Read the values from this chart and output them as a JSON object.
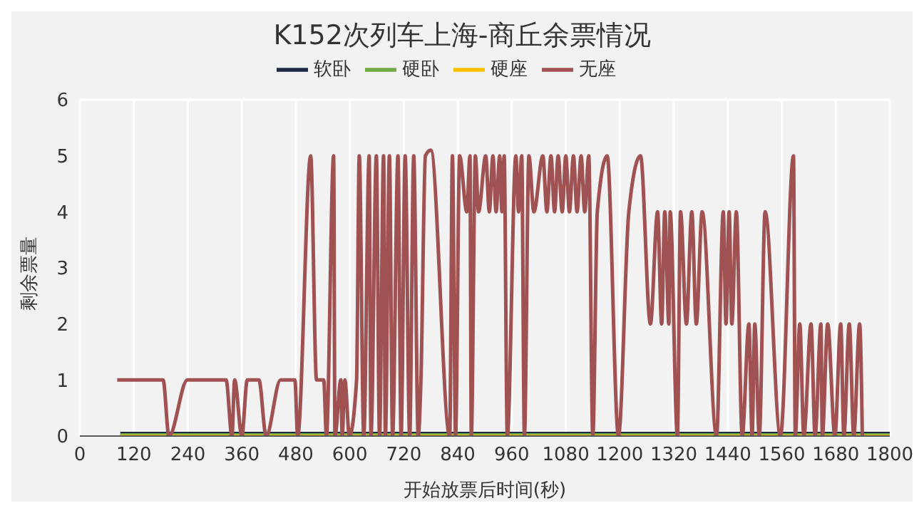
{
  "chart_data": {
    "type": "line",
    "title": "K152次列车上海-商丘余票情况",
    "xlabel": "开始放票后时间(秒)",
    "ylabel": "剩余票量",
    "xlim": [
      0,
      1800
    ],
    "xticks": [
      0,
      120,
      240,
      360,
      480,
      600,
      720,
      840,
      960,
      1080,
      1200,
      1320,
      1440,
      1560,
      1680,
      1800
    ],
    "ylim": [
      0,
      6
    ],
    "yticks": [
      0,
      1,
      2,
      3,
      4,
      5,
      6
    ],
    "grid": true,
    "legend": "top",
    "marker": "none",
    "line_style": "solid",
    "series": [
      {
        "name": "软卧",
        "color": "#1f2a44",
        "x": [
          90,
          1800
        ],
        "values": [
          0,
          0
        ]
      },
      {
        "name": "硬卧",
        "color": "#70ad47",
        "x": [
          90,
          1800
        ],
        "values": [
          0,
          0
        ]
      },
      {
        "name": "硬座",
        "color": "#ffc000",
        "x": [
          90,
          1800
        ],
        "values": [
          0,
          0
        ]
      },
      {
        "name": "无座",
        "color": "#a05252",
        "x": [
          83,
          185,
          198,
          239,
          261,
          325,
          338,
          344,
          360,
          372,
          398,
          414,
          446,
          478,
          484,
          513,
          526,
          542,
          548,
          564,
          567,
          580,
          583,
          589,
          599,
          615,
          621,
          631,
          643,
          647,
          659,
          666,
          675,
          679,
          688,
          695,
          707,
          714,
          723,
          733,
          742,
          752,
          758,
          768,
          780,
          822,
          828,
          835,
          844,
          860,
          867,
          870,
          879,
          886,
          902,
          910,
          918,
          925,
          933,
          938,
          943,
          950,
          969,
          975,
          982,
          988,
          998,
          1009,
          1029,
          1038,
          1047,
          1055,
          1063,
          1072,
          1080,
          1088,
          1097,
          1105,
          1114,
          1122,
          1131,
          1140,
          1150,
          1172,
          1197,
          1220,
          1246,
          1268,
          1284,
          1293,
          1300,
          1309,
          1312,
          1328,
          1335,
          1348,
          1360,
          1370,
          1383,
          1415,
          1430,
          1436,
          1443,
          1449,
          1459,
          1472,
          1487,
          1494,
          1500,
          1510,
          1523,
          1557,
          1586,
          1590,
          1600,
          1609,
          1625,
          1634,
          1647,
          1650,
          1662,
          1678,
          1691,
          1698,
          1710,
          1720,
          1733,
          1739
        ],
        "values": [
          1,
          1,
          0,
          1,
          1,
          1,
          0,
          1,
          0,
          1,
          1,
          0,
          1,
          1,
          0,
          5,
          1,
          1,
          0,
          5,
          0,
          1,
          0,
          1,
          0,
          1,
          5,
          0,
          5,
          0,
          5,
          0,
          5,
          0,
          5,
          0,
          5,
          0,
          5,
          0,
          5,
          0,
          1,
          5,
          5.1,
          0,
          5,
          0,
          5,
          4,
          5,
          0,
          5,
          4,
          5,
          4,
          5,
          4,
          5,
          4,
          5,
          0,
          5,
          4,
          5,
          0,
          5,
          4,
          5,
          4,
          5,
          4,
          5,
          4,
          5,
          4,
          5,
          4,
          5,
          4,
          5,
          0,
          4,
          5,
          0,
          4,
          5,
          2,
          4,
          2,
          4,
          2,
          4,
          0,
          4,
          2,
          4,
          2,
          4,
          0,
          4,
          2,
          4,
          2,
          4,
          0,
          2,
          0,
          2,
          0,
          4,
          0,
          5,
          0,
          2,
          0,
          2,
          0,
          2,
          0,
          2,
          0,
          2,
          0,
          2,
          0,
          2,
          0
        ]
      }
    ]
  }
}
